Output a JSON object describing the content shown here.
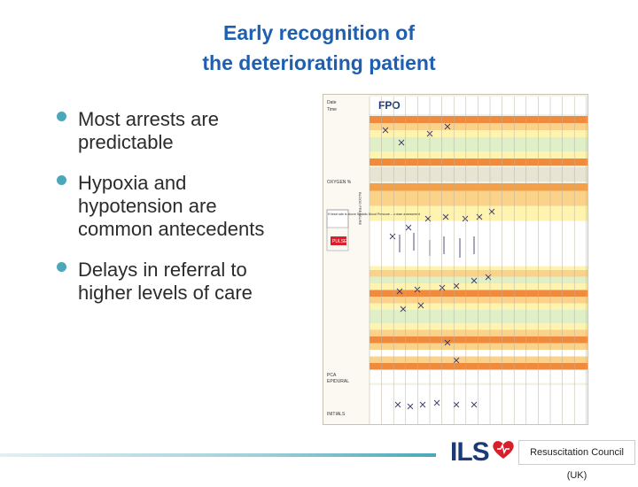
{
  "slide": {
    "title_line1": "Early recognition of",
    "title_line2": "the deteriorating patient",
    "bullets": [
      "Most arrests are predictable",
      "Hypoxia and hypotension are common antecedents",
      "Delays in referral to higher levels of care"
    ]
  },
  "chart_image": {
    "heading": "FPO",
    "label_date": "Date",
    "label_time": "Time",
    "label_oxygen": "OXYGEN %",
    "label_pulse": "PULSE",
    "label_initials": "INITIALS",
    "label_pca": "PCA",
    "label_epidural": "EPIDURAL",
    "note_text": "If heart rate is above Systolic Blood Pressure – a dose assessment",
    "bp_vertical": "BLOOD PRESSURE"
  },
  "footer": {
    "logo_ils": "ILS",
    "logo_rc": "Resuscitation Council (UK)"
  },
  "colors": {
    "title": "#1f5fb0",
    "bullet": "#4aa8b8",
    "logo_ils": "#1b3b78",
    "heart": "#d8202c"
  }
}
